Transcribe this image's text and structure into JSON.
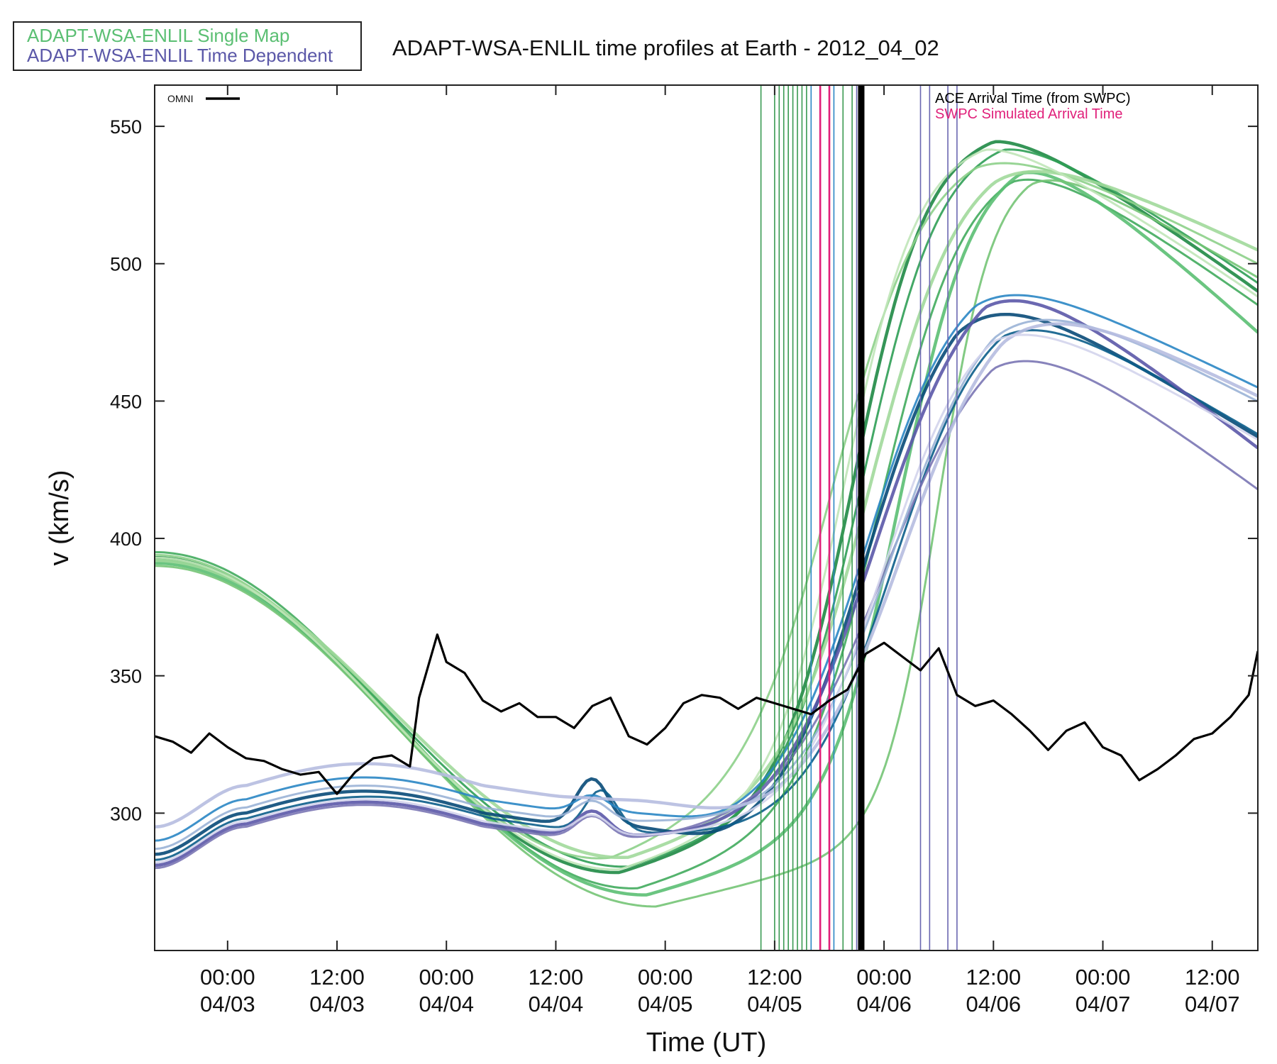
{
  "legend": {
    "single_map": "ADAPT-WSA-ENLIL Single Map",
    "time_dependent": "ADAPT-WSA-ENLIL Time Dependent",
    "single_map_color": "#5bbf73",
    "time_dependent_color": "#5b58a8"
  },
  "chart_data": {
    "type": "line",
    "title": "ADAPT-WSA-ENLIL time profiles at Earth - 2012_04_02",
    "xlabel": "Time (UT)",
    "ylabel": "v (km/s)",
    "xlim": [
      "2012-04-02T16:00",
      "2012-04-07T17:00"
    ],
    "ylim": [
      250,
      565
    ],
    "grid": false,
    "x_ticks": [
      {
        "t": "2012-04-03T00:00",
        "time": "00:00",
        "date": "04/03"
      },
      {
        "t": "2012-04-03T12:00",
        "time": "12:00",
        "date": "04/03"
      },
      {
        "t": "2012-04-04T00:00",
        "time": "00:00",
        "date": "04/04"
      },
      {
        "t": "2012-04-04T12:00",
        "time": "12:00",
        "date": "04/04"
      },
      {
        "t": "2012-04-05T00:00",
        "time": "00:00",
        "date": "04/05"
      },
      {
        "t": "2012-04-05T12:00",
        "time": "12:00",
        "date": "04/05"
      },
      {
        "t": "2012-04-06T00:00",
        "time": "00:00",
        "date": "04/06"
      },
      {
        "t": "2012-04-06T12:00",
        "time": "12:00",
        "date": "04/06"
      },
      {
        "t": "2012-04-07T00:00",
        "time": "00:00",
        "date": "04/07"
      },
      {
        "t": "2012-04-07T12:00",
        "time": "12:00",
        "date": "04/07"
      }
    ],
    "y_ticks": [
      300,
      350,
      400,
      450,
      500,
      550
    ],
    "inner_legend": {
      "omni": "OMNI",
      "ace": "ACE Arrival Time (from SWPC)",
      "swpc": "SWPC Simulated Arrival Time",
      "ace_color": "#000000",
      "swpc_color": "#e0207a"
    },
    "omni": {
      "name": "OMNI",
      "color": "#000000",
      "x": [
        "2012-04-02T16:00",
        "2012-04-02T18:00",
        "2012-04-02T20:00",
        "2012-04-02T22:00",
        "2012-04-03T00:00",
        "2012-04-03T02:00",
        "2012-04-03T04:00",
        "2012-04-03T06:00",
        "2012-04-03T08:00",
        "2012-04-03T10:00",
        "2012-04-03T12:00",
        "2012-04-03T14:00",
        "2012-04-03T16:00",
        "2012-04-03T18:00",
        "2012-04-03T20:00",
        "2012-04-03T21:00",
        "2012-04-03T23:00",
        "2012-04-04T00:00",
        "2012-04-04T02:00",
        "2012-04-04T04:00",
        "2012-04-04T06:00",
        "2012-04-04T08:00",
        "2012-04-04T10:00",
        "2012-04-04T12:00",
        "2012-04-04T14:00",
        "2012-04-04T16:00",
        "2012-04-04T18:00",
        "2012-04-04T20:00",
        "2012-04-04T22:00",
        "2012-04-05T00:00",
        "2012-04-05T02:00",
        "2012-04-05T04:00",
        "2012-04-05T06:00",
        "2012-04-05T08:00",
        "2012-04-05T10:00",
        "2012-04-05T12:00",
        "2012-04-05T14:00",
        "2012-04-05T16:00",
        "2012-04-05T18:00",
        "2012-04-05T20:00",
        "2012-04-05T22:00",
        "2012-04-06T00:00",
        "2012-04-06T02:00",
        "2012-04-06T04:00",
        "2012-04-06T06:00",
        "2012-04-06T08:00",
        "2012-04-06T10:00",
        "2012-04-06T12:00",
        "2012-04-06T14:00",
        "2012-04-06T16:00",
        "2012-04-06T18:00",
        "2012-04-06T20:00",
        "2012-04-06T22:00",
        "2012-04-07T00:00",
        "2012-04-07T02:00",
        "2012-04-07T04:00",
        "2012-04-07T06:00",
        "2012-04-07T08:00",
        "2012-04-07T10:00",
        "2012-04-07T12:00",
        "2012-04-07T14:00",
        "2012-04-07T16:00",
        "2012-04-07T17:00"
      ],
      "y": [
        328,
        326,
        322,
        329,
        324,
        320,
        319,
        316,
        314,
        315,
        307,
        315,
        320,
        321,
        317,
        342,
        365,
        355,
        351,
        341,
        337,
        340,
        335,
        335,
        331,
        339,
        342,
        328,
        325,
        331,
        340,
        343,
        342,
        338,
        342,
        340,
        338,
        336,
        341,
        345,
        358,
        362,
        357,
        352,
        360,
        343,
        339,
        341,
        336,
        330,
        323,
        330,
        333,
        324,
        321,
        312,
        316,
        321,
        327,
        329,
        335,
        343,
        359
      ]
    },
    "vlines": {
      "green": [
        "2012-04-05T10:30",
        "2012-04-05T12:00",
        "2012-04-05T12:30",
        "2012-04-05T13:00",
        "2012-04-05T13:30",
        "2012-04-05T14:00",
        "2012-04-05T14:30",
        "2012-04-05T15:00",
        "2012-04-05T15:30",
        "2012-04-05T19:30",
        "2012-04-05T20:30"
      ],
      "blue": [
        "2012-04-05T16:00",
        "2012-04-05T18:30",
        "2012-04-05T21:00",
        "2012-04-06T04:00",
        "2012-04-06T05:00",
        "2012-04-06T07:00",
        "2012-04-06T08:00"
      ],
      "swpc": [
        "2012-04-05T17:00",
        "2012-04-05T18:00"
      ],
      "ace": "2012-04-05T21:30"
    },
    "series_groups": [
      {
        "name": "ADAPT-WSA-ENLIL Single Map",
        "colors": [
          "#1f8a45",
          "#2f9e55",
          "#41ab5d",
          "#5bbf73",
          "#74c476",
          "#8dd08a",
          "#a1d99b",
          "#c0e6b8"
        ],
        "members": [
          {
            "start": 393,
            "min_t": "2012-04-04T19:00",
            "min_v": 278,
            "rise_t": "2012-04-05T21:00",
            "rise_w": 4.0,
            "peak_t": "2012-04-06T12:00",
            "peak_v": 550,
            "end_v": 490
          },
          {
            "start": 392,
            "min_t": "2012-04-04T20:00",
            "min_v": 280,
            "rise_t": "2012-04-05T22:00",
            "rise_w": 4.2,
            "peak_t": "2012-04-06T13:00",
            "peak_v": 548,
            "end_v": 493
          },
          {
            "start": 395,
            "min_t": "2012-04-04T21:00",
            "min_v": 272,
            "rise_t": "2012-04-06T00:00",
            "rise_w": 4.5,
            "peak_t": "2012-04-06T14:00",
            "peak_v": 540,
            "end_v": 485
          },
          {
            "start": 391,
            "min_t": "2012-04-04T22:00",
            "min_v": 270,
            "rise_t": "2012-04-06T02:00",
            "rise_w": 4.0,
            "peak_t": "2012-04-06T15:00",
            "peak_v": 542,
            "end_v": 475
          },
          {
            "start": 390,
            "min_t": "2012-04-04T23:00",
            "min_v": 266,
            "rise_t": "2012-04-06T06:00",
            "rise_w": 3.0,
            "peak_t": "2012-04-06T16:00",
            "peak_v": 537,
            "end_v": 495
          },
          {
            "start": 394,
            "min_t": "2012-04-04T18:00",
            "min_v": 282,
            "rise_t": "2012-04-05T19:00",
            "rise_w": 5.0,
            "peak_t": "2012-04-06T10:00",
            "peak_v": 546,
            "end_v": 500
          },
          {
            "start": 392,
            "min_t": "2012-04-04T20:00",
            "min_v": 283,
            "rise_t": "2012-04-05T23:00",
            "rise_w": 4.8,
            "peak_t": "2012-04-06T12:00",
            "peak_v": 544,
            "end_v": 505
          },
          {
            "start": 393,
            "min_t": "2012-04-04T19:00",
            "min_v": 279,
            "rise_t": "2012-04-05T20:00",
            "rise_w": 4.0,
            "peak_t": "2012-04-06T11:00",
            "peak_v": 547,
            "end_v": 488
          }
        ]
      },
      {
        "name": "ADAPT-WSA-ENLIL Time Dependent",
        "colors": [
          "#084a78",
          "#0b5d8a",
          "#2a86c4",
          "#5b58a8",
          "#7a76b4",
          "#9ab3d6",
          "#b6bde0",
          "#d3d4ec"
        ],
        "members": [
          {
            "base": 300,
            "bump_t": "2012-04-04T16:00",
            "bump_v": 312,
            "drop_v": 285,
            "rise_t": "2012-04-05T22:00",
            "rise_w": 5.0,
            "peak_t": "2012-04-06T08:00",
            "peak_v": 500,
            "end_v": 437
          },
          {
            "base": 298,
            "bump_t": "2012-04-04T17:00",
            "bump_v": 308,
            "drop_v": 290,
            "rise_t": "2012-04-06T01:00",
            "rise_w": 5.0,
            "peak_t": "2012-04-06T13:00",
            "peak_v": 490,
            "end_v": 438
          },
          {
            "base": 305,
            "bump_t": "2012-04-04T16:00",
            "bump_v": 306,
            "drop_v": 292,
            "rise_t": "2012-04-05T22:00",
            "rise_w": 5.0,
            "peak_t": "2012-04-06T10:00",
            "peak_v": 502,
            "end_v": 455
          },
          {
            "base": 296,
            "bump_t": "2012-04-04T16:00",
            "bump_v": 300,
            "drop_v": 288,
            "rise_t": "2012-04-05T23:00",
            "rise_w": 5.5,
            "peak_t": "2012-04-06T11:00",
            "peak_v": 506,
            "end_v": 433
          },
          {
            "base": 295,
            "bump_t": "2012-04-04T16:00",
            "bump_v": 298,
            "drop_v": 290,
            "rise_t": "2012-04-06T00:00",
            "rise_w": 6.0,
            "peak_t": "2012-04-06T12:00",
            "peak_v": 485,
            "end_v": 418
          },
          {
            "base": 302,
            "bump_t": "2012-04-04T16:00",
            "bump_v": 304,
            "drop_v": 293,
            "rise_t": "2012-04-06T01:00",
            "rise_w": 5.5,
            "peak_t": "2012-04-06T12:00",
            "peak_v": 497,
            "end_v": 450
          },
          {
            "base": 310,
            "bump_t": "2012-04-04T16:00",
            "bump_v": 305,
            "drop_v": 294,
            "rise_t": "2012-04-06T02:00",
            "rise_w": 5.5,
            "peak_t": "2012-04-06T13:00",
            "peak_v": 495,
            "end_v": 452
          },
          {
            "base": 297,
            "bump_t": "2012-04-04T16:00",
            "bump_v": 299,
            "drop_v": 291,
            "rise_t": "2012-04-06T00:00",
            "rise_w": 5.0,
            "peak_t": "2012-04-06T12:00",
            "peak_v": 488,
            "end_v": 436
          }
        ]
      }
    ]
  }
}
